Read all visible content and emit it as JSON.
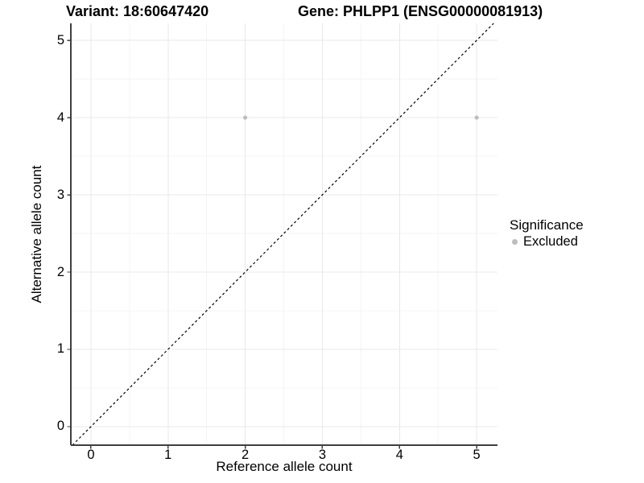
{
  "chart_data": {
    "type": "scatter",
    "title_left": "Variant: 18:60647420",
    "title_right": "Gene: PHLPP1 (ENSG00000081913)",
    "xlabel": "Reference allele count",
    "ylabel": "Alternative allele count",
    "xlim": [
      -0.26,
      5.27
    ],
    "ylim": [
      -0.24,
      5.22
    ],
    "xticks": [
      0,
      1,
      2,
      3,
      4,
      5
    ],
    "yticks": [
      0,
      1,
      2,
      3,
      4,
      5
    ],
    "xminor": [
      0.5,
      1.5,
      2.5,
      3.5,
      4.5
    ],
    "yminor": [
      0.5,
      1.5,
      2.5,
      3.5,
      4.5
    ],
    "grid": "major and minor gridlines, no top/right border",
    "series": [
      {
        "name": "Excluded",
        "color": "#bdbdbd",
        "points": [
          {
            "x": 2,
            "y": 4
          },
          {
            "x": 5,
            "y": 4
          }
        ]
      }
    ],
    "identity_line": {
      "equation": "y = x",
      "style": "dashed",
      "from": -0.24,
      "to": 5.22
    },
    "legend": {
      "title": "Significance",
      "position": "right",
      "entries": [
        {
          "label": "Excluded",
          "color": "#bdbdbd"
        }
      ]
    },
    "colors": {
      "point": "#bdbdbd",
      "grid_major": "#e8e8e8",
      "grid_minor": "#f4f4f4",
      "axis": "#3f3f3f",
      "dashed_line": "#000000",
      "text": "#000000",
      "background": "#ffffff"
    }
  }
}
